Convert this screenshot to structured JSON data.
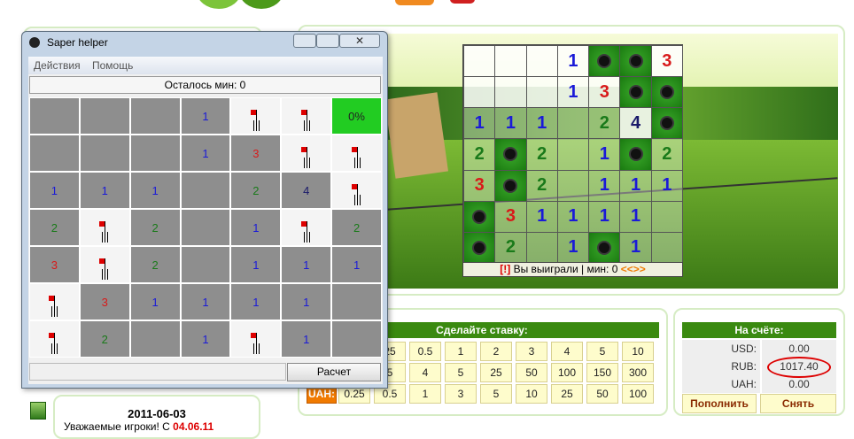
{
  "helper": {
    "title": "Saper helper",
    "menu": [
      "Действия",
      "Помощь"
    ],
    "status": "Осталось мин: 0",
    "grid": [
      [
        null,
        null,
        null,
        1,
        null,
        null,
        "0%"
      ],
      [
        null,
        null,
        null,
        1,
        3,
        null,
        null
      ],
      [
        1,
        1,
        1,
        null,
        2,
        4,
        null
      ],
      [
        2,
        null,
        2,
        null,
        1,
        null,
        2
      ],
      [
        3,
        null,
        2,
        null,
        1,
        1,
        1
      ],
      [
        null,
        3,
        1,
        1,
        1,
        1,
        null
      ],
      [
        null,
        2,
        null,
        1,
        null,
        1,
        null
      ]
    ],
    "button": "Расчет"
  },
  "board": {
    "grid": [
      [
        null,
        null,
        null,
        1,
        null,
        null,
        3
      ],
      [
        null,
        null,
        null,
        1,
        3,
        null,
        null
      ],
      [
        1,
        1,
        1,
        null,
        2,
        4,
        null
      ],
      [
        2,
        null,
        2,
        null,
        1,
        null,
        2
      ],
      [
        3,
        null,
        2,
        null,
        1,
        1,
        1
      ],
      [
        null,
        3,
        1,
        1,
        1,
        1,
        null
      ],
      [
        null,
        2,
        null,
        1,
        null,
        1,
        null
      ]
    ],
    "status": {
      "alert": "[!]",
      "text": "Вы выиграли | мин: 0",
      "nav": "<<>>"
    }
  },
  "bets": {
    "title": "Сделайте ставку:",
    "rows": [
      {
        "values": [
          "25",
          "0.5",
          "1",
          "2",
          "3",
          "4",
          "5",
          "10"
        ]
      },
      {
        "values": [
          "5",
          "4",
          "5",
          "25",
          "50",
          "100",
          "150",
          "300"
        ]
      },
      {
        "label": "UAH:",
        "values": [
          "0.25",
          "0.5",
          "1",
          "3",
          "5",
          "10",
          "25",
          "50",
          "100"
        ]
      }
    ]
  },
  "balance": {
    "title": "На счёте:",
    "rows": [
      {
        "currency": "USD:",
        "amount": "0.00"
      },
      {
        "currency": "RUB:",
        "amount": "1017.40"
      },
      {
        "currency": "UAH:",
        "amount": "0.00"
      }
    ],
    "buttons": [
      "Пополнить",
      "Снять"
    ]
  },
  "news": {
    "date": "2011-06-03",
    "text": "Уважаемые игроки! С ",
    "highlight": "04.06.11"
  }
}
